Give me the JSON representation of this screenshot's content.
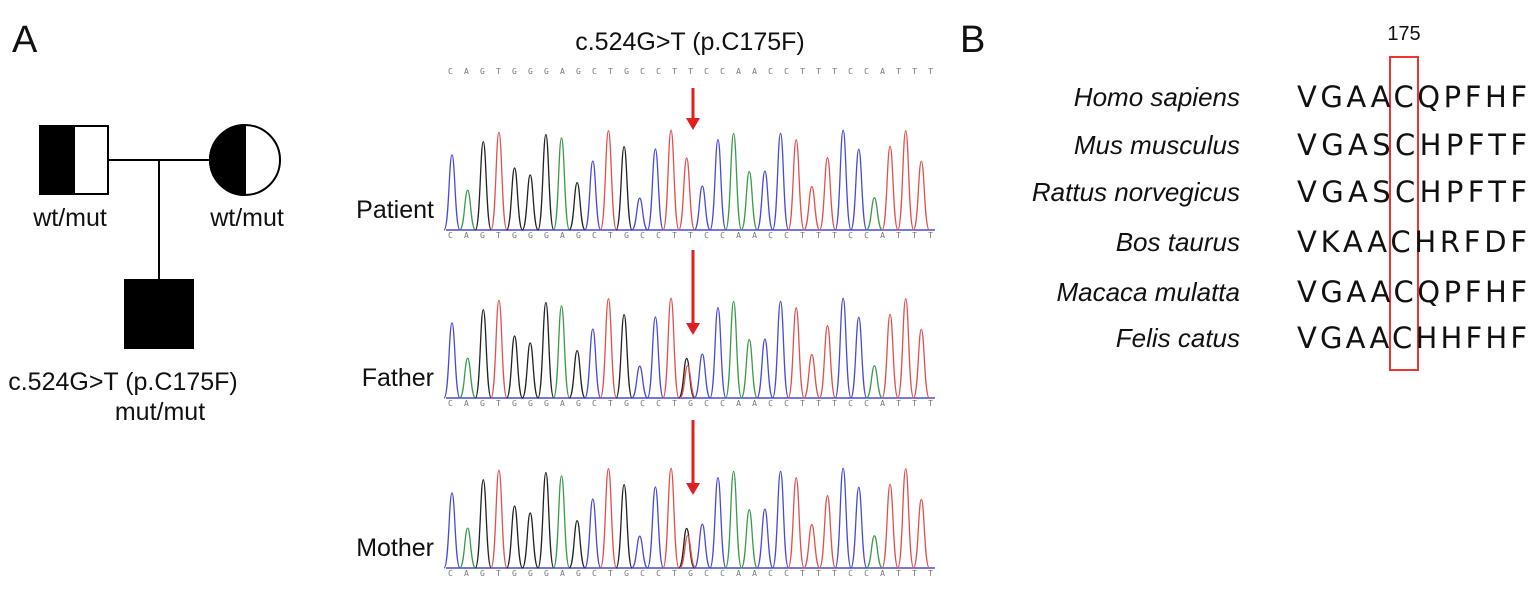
{
  "panel_a": {
    "label": "A",
    "pedigree": {
      "father": {
        "genotype": "wt/mut"
      },
      "mother": {
        "genotype": "wt/mut"
      },
      "child": {
        "variant": "c.524G>T (p.C175F)",
        "genotype": "mut/mut"
      }
    },
    "chromatogram": {
      "title": "c.524G>T (p.C175F)",
      "reference": "CAGTGGGAGCTGCCTTCCAACCTTTCCATTT",
      "traces": [
        {
          "label": "Patient",
          "sequence": "CAGTGGGAGCTGCCTTCCAACCTTTCCATTT"
        },
        {
          "label": "Father",
          "sequence": "CAGTGGGAGCTGCCTGCCAACCTTTCCATTT"
        },
        {
          "label": "Mother",
          "sequence": "CAGTGGGAGCTGCCTGCCAACCTTTCCATTT"
        }
      ]
    }
  },
  "panel_b": {
    "label": "B",
    "position": "175",
    "alignment": [
      {
        "species": "Homo sapiens",
        "sequence": "VGAACQPFHF"
      },
      {
        "species": "Mus musculus",
        "sequence": "VGASCHPFTF"
      },
      {
        "species": "Rattus norvegicus",
        "sequence": "VGASCHPFTF"
      },
      {
        "species": "Bos taurus",
        "sequence": "VKAACHRFDF"
      },
      {
        "species": "Macaca mulatta",
        "sequence": "VGAACQPFHF"
      },
      {
        "species": "Felis catus",
        "sequence": "VGAACHHFHF"
      }
    ]
  }
}
